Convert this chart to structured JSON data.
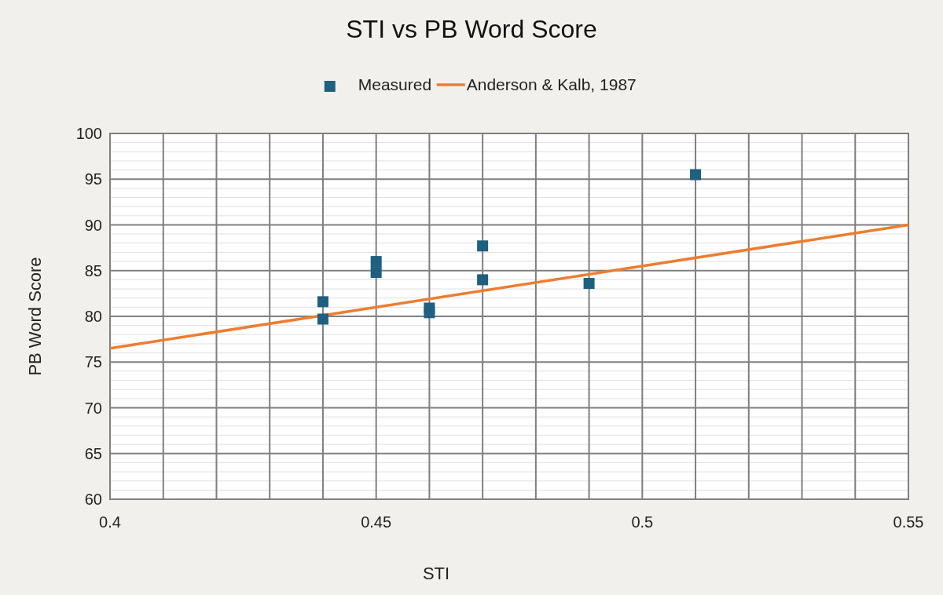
{
  "chart_data": {
    "type": "scatter",
    "title": "STI vs PB Word Score",
    "xlabel": "STI",
    "ylabel": "PB Word Score",
    "legend": "top",
    "grid": true,
    "marker": "square",
    "xlim": [
      0.4,
      0.55
    ],
    "ylim": [
      60,
      100
    ],
    "xticks": [
      0.4,
      {
        "value": 0.41,
        "label": null
      },
      {
        "value": 0.42,
        "label": null
      },
      {
        "value": 0.43,
        "label": null
      },
      {
        "value": 0.44,
        "label": null
      },
      0.45,
      {
        "value": 0.46,
        "label": null
      },
      {
        "value": 0.47,
        "label": null
      },
      {
        "value": 0.48,
        "label": null
      },
      {
        "value": 0.49,
        "label": null
      },
      0.5,
      {
        "value": 0.51,
        "label": null
      },
      {
        "value": 0.52,
        "label": null
      },
      {
        "value": 0.53,
        "label": null
      },
      {
        "value": 0.54,
        "label": null
      },
      0.55
    ],
    "yticks": [
      60,
      {
        "value": 61,
        "label": null
      },
      {
        "value": 62,
        "label": null
      },
      {
        "value": 63,
        "label": null
      },
      {
        "value": 64,
        "label": null
      },
      65,
      {
        "value": 66,
        "label": null
      },
      {
        "value": 67,
        "label": null
      },
      {
        "value": 68,
        "label": null
      },
      {
        "value": 69,
        "label": null
      },
      70,
      {
        "value": 71,
        "label": null
      },
      {
        "value": 72,
        "label": null
      },
      {
        "value": 73,
        "label": null
      },
      {
        "value": 74,
        "label": null
      },
      75,
      {
        "value": 76,
        "label": null
      },
      {
        "value": 77,
        "label": null
      },
      {
        "value": 78,
        "label": null
      },
      {
        "value": 79,
        "label": null
      },
      80,
      {
        "value": 81,
        "label": null
      },
      {
        "value": 82,
        "label": null
      },
      {
        "value": 83,
        "label": null
      },
      {
        "value": 84,
        "label": null
      },
      85,
      {
        "value": 86,
        "label": null
      },
      {
        "value": 87,
        "label": null
      },
      {
        "value": 88,
        "label": null
      },
      {
        "value": 89,
        "label": null
      },
      90,
      {
        "value": 91,
        "label": null
      },
      {
        "value": 92,
        "label": null
      },
      {
        "value": 93,
        "label": null
      },
      {
        "value": 94,
        "label": null
      },
      95,
      {
        "value": 96,
        "label": null
      },
      {
        "value": 97,
        "label": null
      },
      {
        "value": 98,
        "label": null
      },
      {
        "value": 99,
        "label": null
      },
      100
    ],
    "series": [
      {
        "name": "Measured",
        "color": "#1f5f80",
        "x": [
          0.44,
          0.44,
          0.45,
          0.45,
          0.46,
          0.46,
          0.47,
          0.47,
          0.49,
          0.51
        ],
        "values": [
          81.6,
          79.7,
          86.0,
          84.8,
          80.9,
          80.4,
          87.7,
          84.0,
          83.6,
          95.5
        ]
      },
      {
        "name": "Anderson & Kalb, 1987",
        "type": "line",
        "color": "#ed7d31",
        "marker": "none",
        "x": [
          0.4,
          0.55
        ],
        "values": [
          76.5,
          90.0
        ]
      }
    ]
  }
}
